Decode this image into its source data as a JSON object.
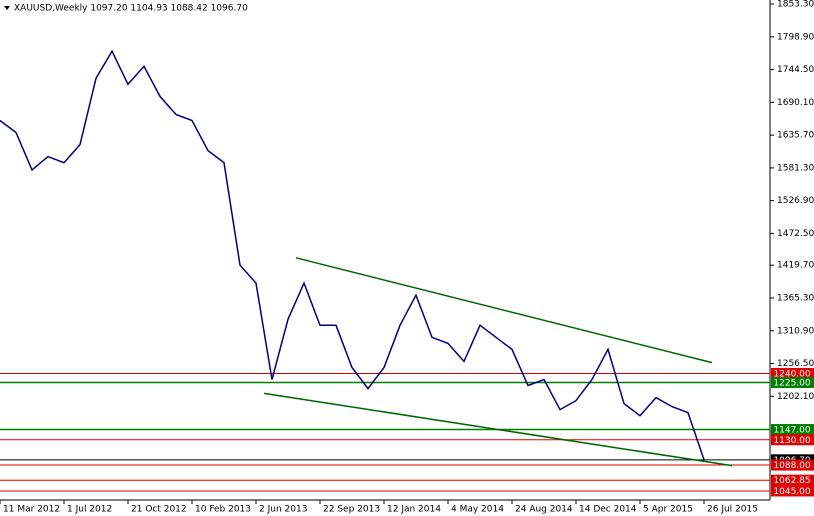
{
  "chart_data": {
    "type": "line",
    "title": "XAUUSD,Weekly  1097.20 1104.93 1088.42 1096.70",
    "x": [
      "2012-03-11",
      "2012-04-08",
      "2012-05-06",
      "2012-06-03",
      "2012-07-01",
      "2012-07-29",
      "2012-08-26",
      "2012-09-23",
      "2012-10-21",
      "2012-11-18",
      "2012-12-16",
      "2013-01-13",
      "2013-02-10",
      "2013-03-10",
      "2013-04-07",
      "2013-05-05",
      "2013-06-02",
      "2013-06-30",
      "2013-07-28",
      "2013-08-25",
      "2013-09-22",
      "2013-10-20",
      "2013-11-17",
      "2013-12-15",
      "2014-01-12",
      "2014-02-09",
      "2014-03-09",
      "2014-04-06",
      "2014-05-04",
      "2014-06-01",
      "2014-06-29",
      "2014-07-27",
      "2014-08-24",
      "2014-09-21",
      "2014-10-19",
      "2014-11-16",
      "2014-12-14",
      "2015-01-11",
      "2015-02-08",
      "2015-03-08",
      "2015-04-05",
      "2015-05-03",
      "2015-05-31",
      "2015-06-28",
      "2015-07-26"
    ],
    "series": [
      {
        "name": "XAUUSD",
        "color": "#000080",
        "values": [
          1660,
          1640,
          1578,
          1600,
          1590,
          1620,
          1730,
          1775,
          1720,
          1750,
          1700,
          1670,
          1660,
          1610,
          1590,
          1420,
          1390,
          1230,
          1330,
          1390,
          1320,
          1320,
          1250,
          1215,
          1250,
          1320,
          1370,
          1300,
          1290,
          1260,
          1320,
          1300,
          1280,
          1220,
          1230,
          1180,
          1195,
          1230,
          1280,
          1190,
          1170,
          1200,
          1185,
          1175,
          1096.7
        ]
      }
    ],
    "xlim": [
      "2012-03-11",
      "2015-11-15"
    ],
    "xticks": [
      {
        "value": "2012-03-11",
        "label": "11 Mar 2012"
      },
      {
        "value": "2012-07-01",
        "label": "1 Jul 2012"
      },
      {
        "value": "2012-10-21",
        "label": "21 Oct 2012"
      },
      {
        "value": "2013-02-10",
        "label": "10 Feb 2013"
      },
      {
        "value": "2013-06-02",
        "label": "2 Jun 2013"
      },
      {
        "value": "2013-09-22",
        "label": "22 Sep 2013"
      },
      {
        "value": "2014-01-12",
        "label": "12 Jan 2014"
      },
      {
        "value": "2014-05-04",
        "label": "4 May 2014"
      },
      {
        "value": "2014-08-24",
        "label": "24 Aug 2014"
      },
      {
        "value": "2014-12-14",
        "label": "14 Dec 2014"
      },
      {
        "value": "2015-04-05",
        "label": "5 Apr 2015"
      },
      {
        "value": "2015-07-26",
        "label": "26 Jul 2015"
      }
    ],
    "ylim": [
      1030,
      1860
    ],
    "yticks": [
      {
        "value": 1853.3,
        "label": "1853.30"
      },
      {
        "value": 1798.9,
        "label": "1798.90"
      },
      {
        "value": 1744.5,
        "label": "1744.50"
      },
      {
        "value": 1690.1,
        "label": "1690.10"
      },
      {
        "value": 1635.7,
        "label": "1635.70"
      },
      {
        "value": 1581.3,
        "label": "1581.30"
      },
      {
        "value": 1526.9,
        "label": "1526.90"
      },
      {
        "value": 1472.5,
        "label": "1472.50"
      },
      {
        "value": 1419.7,
        "label": "1419.70"
      },
      {
        "value": 1365.3,
        "label": "1365.30"
      },
      {
        "value": 1310.9,
        "label": "1310.90"
      },
      {
        "value": 1256.5,
        "label": "1256.50"
      },
      {
        "value": 1202.1,
        "label": "1202.10"
      }
    ],
    "levels": [
      {
        "value": 1240,
        "label": "1240.00",
        "color": "#e00000"
      },
      {
        "value": 1225,
        "label": "1225.00",
        "color": "#008000"
      },
      {
        "value": 1147,
        "label": "1147.00",
        "color": "#008000"
      },
      {
        "value": 1130,
        "label": "1130.00",
        "color": "#e00000"
      },
      {
        "value": 1096.7,
        "label": "1096.70",
        "color": "#000000"
      },
      {
        "value": 1088,
        "label": "1088.00",
        "color": "#e00000"
      },
      {
        "value": 1062.85,
        "label": "1062.85",
        "color": "#e00000"
      },
      {
        "value": 1045,
        "label": "1045.00",
        "color": "#e00000"
      }
    ],
    "trendlines": [
      {
        "color": "#006400",
        "x": [
          "2013-08-11",
          "2015-08-09"
        ],
        "values": [
          1432,
          1258
        ]
      },
      {
        "color": "#006400",
        "x": [
          "2013-06-16",
          "2015-09-13"
        ],
        "values": [
          1207,
          1087
        ]
      }
    ]
  }
}
